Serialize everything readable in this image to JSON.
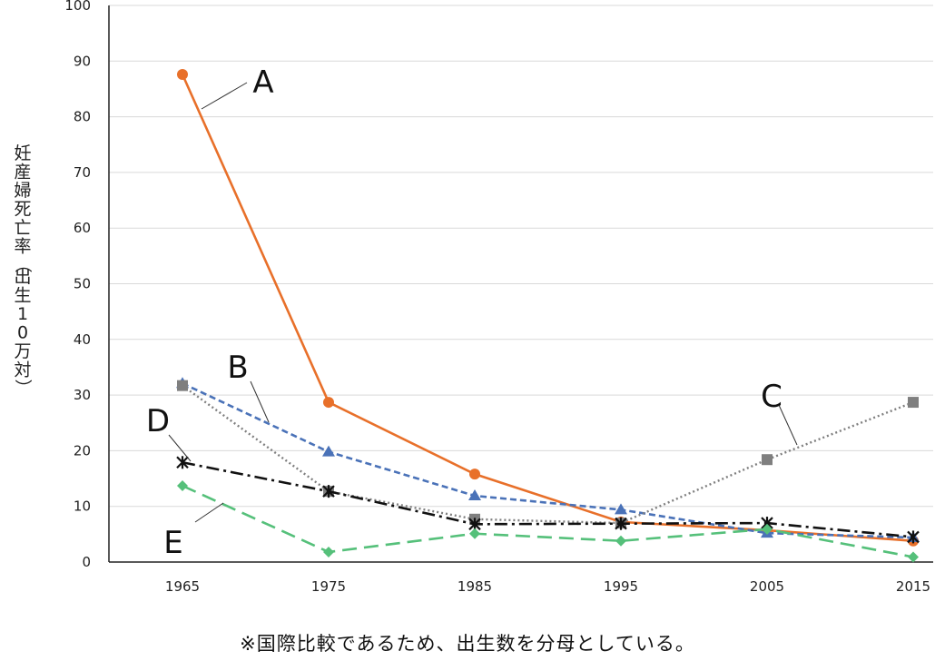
{
  "chart_data": {
    "type": "line",
    "ylabel": "妊産婦死亡率（出生10万対）",
    "ylim": [
      0,
      100
    ],
    "yticks": [
      0,
      10,
      20,
      30,
      40,
      50,
      60,
      70,
      80,
      90,
      100
    ],
    "x": [
      1965,
      1975,
      1985,
      1995,
      2005,
      2015
    ],
    "xtick_labels": [
      "1965",
      "1975",
      "1985",
      "1995",
      "2005",
      "2015"
    ],
    "grid": "horizontal",
    "series": [
      {
        "name": "A",
        "color": "#e8702a",
        "marker": "circle",
        "line": "solid",
        "values": [
          87.6,
          28.7,
          15.8,
          7.2,
          5.7,
          3.8
        ]
      },
      {
        "name": "B",
        "color": "#4a72b8",
        "marker": "triangle",
        "line": "dashed",
        "values": [
          32.1,
          19.8,
          11.9,
          9.4,
          5.2,
          4.4
        ]
      },
      {
        "name": "C",
        "color": "#7f7f7f",
        "marker": "square",
        "line": "dotted",
        "values": [
          31.7,
          12.7,
          7.7,
          7.0,
          18.4,
          28.7
        ]
      },
      {
        "name": "D",
        "color": "#111111",
        "marker": "star",
        "line": "dashdot",
        "values": [
          17.9,
          12.7,
          6.8,
          6.9,
          7.0,
          4.5
        ]
      },
      {
        "name": "E",
        "color": "#55c07a",
        "marker": "diamond",
        "line": "longdash",
        "values": [
          13.7,
          1.8,
          5.1,
          3.8,
          5.9,
          0.9
        ]
      }
    ],
    "note": "※国際比較であるため、出生数を分母としている。"
  }
}
